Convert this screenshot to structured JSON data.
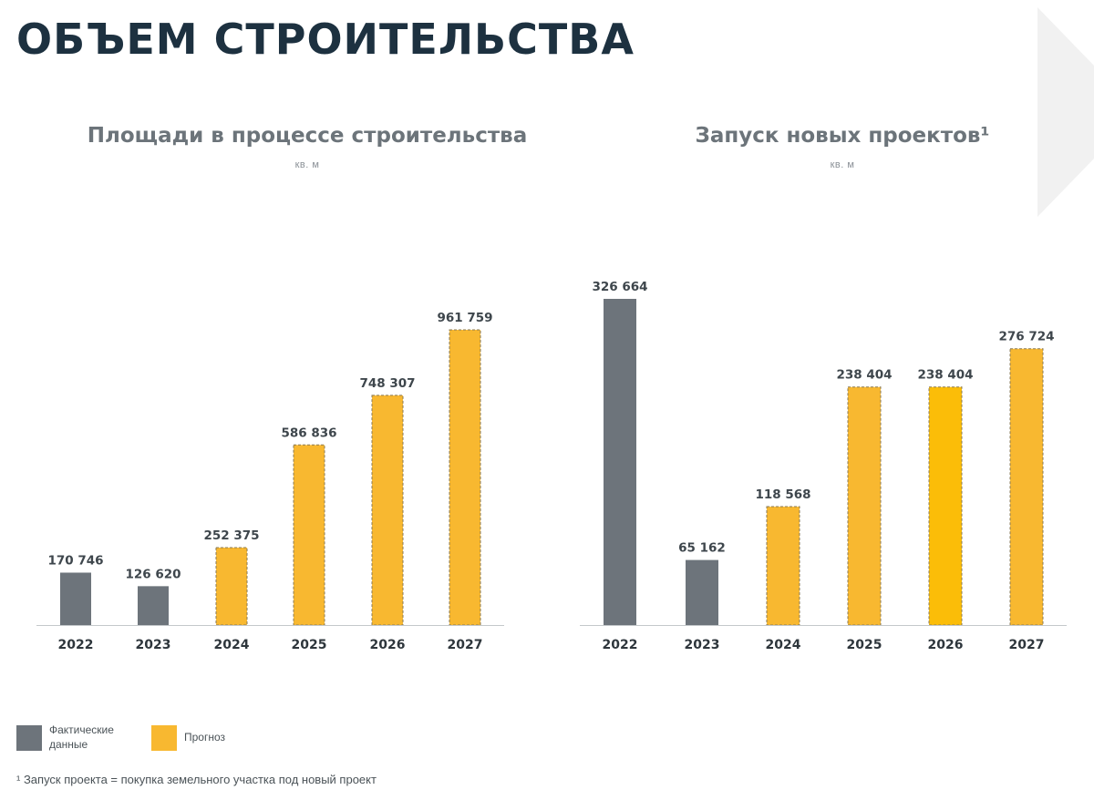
{
  "page": {
    "title": "ОБЪЕМ СТРОИТЕЛЬСТВА",
    "footnote": "¹ Запуск проекта = покупка земельного участка под новый проект"
  },
  "colors": {
    "actual": "#6d747b",
    "forecast": "#f8b830",
    "forecast_highlight": "#fbbd08",
    "title": "#1d3140"
  },
  "legend": {
    "position": "bottom-left",
    "items": [
      {
        "label": "Фактические данные",
        "color": "#6d747b"
      },
      {
        "label": "Прогноз",
        "color": "#f8b830"
      }
    ]
  },
  "chart_data": [
    {
      "type": "bar",
      "title": "Площади в процессе строительства",
      "subtitle": "кв. м",
      "categories": [
        "2022",
        "2023",
        "2024",
        "2025",
        "2026",
        "2027"
      ],
      "values": [
        170746,
        126620,
        252375,
        586836,
        748307,
        961759
      ],
      "value_labels": [
        "170 746",
        "126 620",
        "252 375",
        "586 836",
        "748 307",
        "961 759"
      ],
      "kinds": [
        "actual",
        "actual",
        "forecast",
        "forecast",
        "forecast",
        "forecast"
      ],
      "ylim": [
        0,
        1000000
      ],
      "grid": false
    },
    {
      "type": "bar",
      "title": "Запуск новых проектов¹",
      "subtitle": "кв. м",
      "categories": [
        "2022",
        "2023",
        "2024",
        "2025",
        "2026",
        "2027"
      ],
      "values": [
        326664,
        65162,
        118568,
        238404,
        238404,
        276724
      ],
      "value_labels": [
        "326 664",
        "65 162",
        "118 568",
        "238 404",
        "238 404",
        "276 724"
      ],
      "kinds": [
        "actual",
        "actual",
        "forecast",
        "forecast",
        "forecast_highlight",
        "forecast"
      ],
      "ylim": [
        0,
        330000
      ],
      "grid": false
    }
  ]
}
